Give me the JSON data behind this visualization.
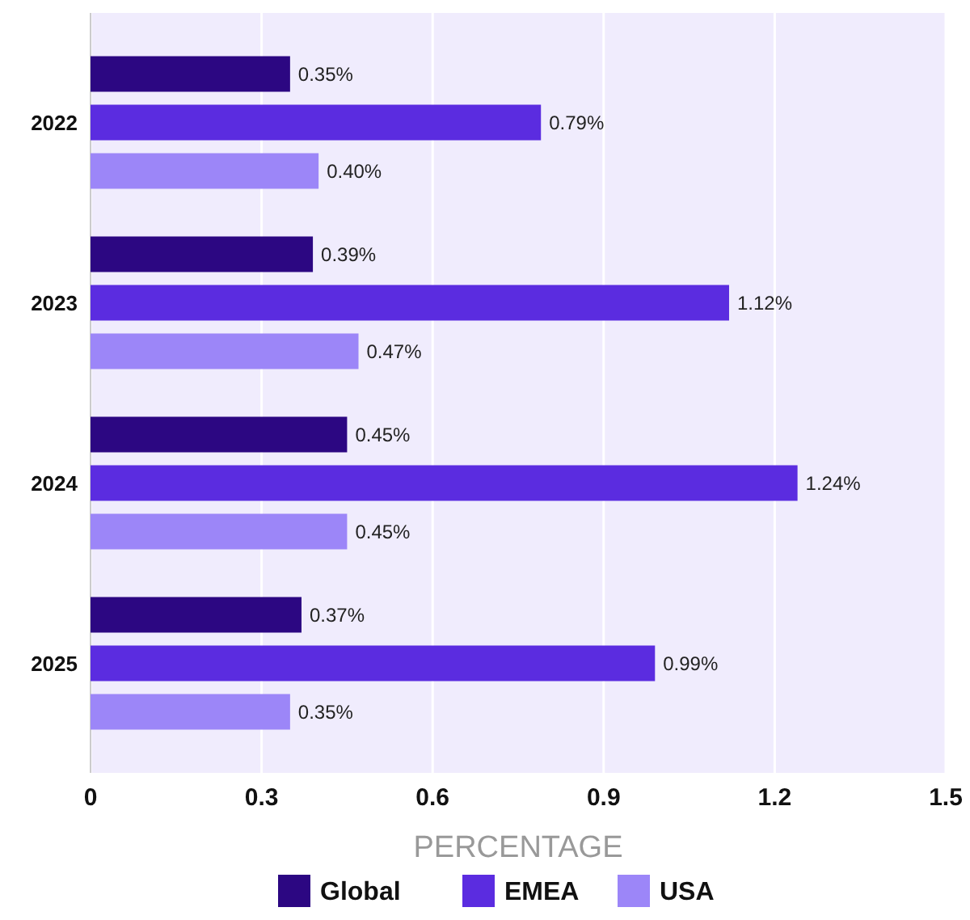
{
  "chart_data": {
    "type": "bar",
    "orientation": "horizontal",
    "xlabel": "PERCENTAGE",
    "categories": [
      "2022",
      "2023",
      "2024",
      "2025"
    ],
    "series": [
      {
        "name": "Global",
        "color": "#2c0782",
        "values": [
          0.35,
          0.39,
          0.45,
          0.37
        ],
        "value_labels": [
          "0.35%",
          "0.39%",
          "0.45%",
          "0.37%"
        ]
      },
      {
        "name": "EMEA",
        "color": "#5b2ce0",
        "values": [
          0.79,
          1.12,
          1.24,
          0.99
        ],
        "value_labels": [
          "0.79%",
          "1.12%",
          "1.24%",
          "0.99%"
        ]
      },
      {
        "name": "USA",
        "color": "#9c86f8",
        "values": [
          0.4,
          0.47,
          0.45,
          0.35
        ],
        "value_labels": [
          "0.40%",
          "0.47%",
          "0.45%",
          "0.35%"
        ]
      }
    ],
    "xlim": [
      0,
      1.5
    ],
    "xticks": [
      0,
      0.3,
      0.6,
      0.9,
      1.2,
      1.5
    ],
    "grid": "x",
    "legend": "bottom"
  }
}
